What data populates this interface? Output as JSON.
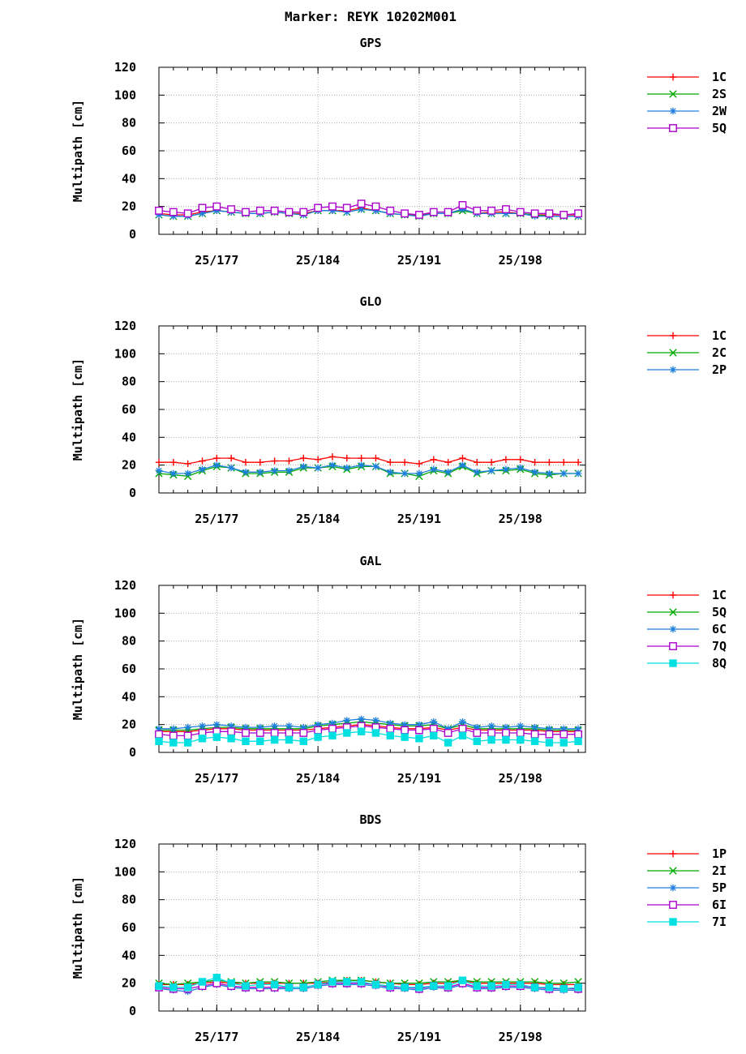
{
  "title": "Marker: REYK 10202M001",
  "chart_data": [
    {
      "type": "line",
      "title": "GPS",
      "ylabel": "Multipath [cm]",
      "ylim": [
        0,
        120
      ],
      "yticks": [
        0,
        20,
        40,
        60,
        80,
        100,
        120
      ],
      "xlim": [
        173,
        202.5
      ],
      "xticks": [
        {
          "value": 177,
          "label": "25/177"
        },
        {
          "value": 184,
          "label": "25/184"
        },
        {
          "value": 191,
          "label": "25/191"
        },
        {
          "value": 198,
          "label": "25/198"
        }
      ],
      "grid": true,
      "legend": "right",
      "x": [
        173,
        174,
        175,
        176,
        177,
        178,
        179,
        180,
        181,
        182,
        183,
        184,
        185,
        186,
        187,
        188,
        189,
        190,
        191,
        192,
        193,
        194,
        195,
        196,
        197,
        198,
        199,
        200,
        201,
        202
      ],
      "series": [
        {
          "name": "1C",
          "color": "#ff0000",
          "marker": "plus",
          "values": [
            15,
            14,
            14,
            16,
            17,
            16,
            15,
            15,
            16,
            15,
            15,
            17,
            17,
            17,
            19,
            17,
            15,
            14,
            14,
            15,
            15,
            18,
            15,
            16,
            16,
            15,
            14,
            14,
            14,
            14
          ]
        },
        {
          "name": "2S",
          "color": "#00aa00",
          "marker": "x",
          "values": [
            14,
            13,
            13,
            15,
            17,
            16,
            15,
            15,
            16,
            15,
            14,
            17,
            17,
            16,
            18,
            17,
            15,
            14,
            13,
            15,
            15,
            17,
            15,
            15,
            15,
            15,
            14,
            13,
            13,
            13
          ]
        },
        {
          "name": "2W",
          "color": "#1e7fe0",
          "marker": "star",
          "values": [
            14,
            13,
            13,
            15,
            17,
            16,
            15,
            15,
            16,
            15,
            14,
            17,
            17,
            16,
            18,
            17,
            15,
            14,
            13,
            15,
            15,
            18,
            15,
            15,
            15,
            15,
            13,
            13,
            13,
            13
          ]
        },
        {
          "name": "5Q",
          "color": "#aa00cc",
          "marker": "square",
          "values": [
            17,
            16,
            15,
            19,
            20,
            18,
            16,
            17,
            17,
            16,
            16,
            19,
            20,
            19,
            22,
            20,
            17,
            15,
            14,
            16,
            16,
            21,
            17,
            17,
            18,
            16,
            15,
            15,
            14,
            15
          ]
        }
      ]
    },
    {
      "type": "line",
      "title": "GLO",
      "ylabel": "Multipath [cm]",
      "ylim": [
        0,
        120
      ],
      "yticks": [
        0,
        20,
        40,
        60,
        80,
        100,
        120
      ],
      "xlim": [
        173,
        202.5
      ],
      "xticks": [
        {
          "value": 177,
          "label": "25/177"
        },
        {
          "value": 184,
          "label": "25/184"
        },
        {
          "value": 191,
          "label": "25/191"
        },
        {
          "value": 198,
          "label": "25/198"
        }
      ],
      "grid": true,
      "legend": "right",
      "x": [
        173,
        174,
        175,
        176,
        177,
        178,
        179,
        180,
        181,
        182,
        183,
        184,
        185,
        186,
        187,
        188,
        189,
        190,
        191,
        192,
        193,
        194,
        195,
        196,
        197,
        198,
        199,
        200,
        201,
        202
      ],
      "series": [
        {
          "name": "1C",
          "color": "#ff0000",
          "marker": "plus",
          "values": [
            22,
            22,
            21,
            23,
            25,
            25,
            22,
            22,
            23,
            23,
            25,
            24,
            26,
            25,
            25,
            25,
            22,
            22,
            21,
            24,
            22,
            25,
            22,
            22,
            24,
            24,
            22,
            22,
            22,
            22
          ]
        },
        {
          "name": "2C",
          "color": "#00aa00",
          "marker": "x",
          "values": [
            14,
            13,
            12,
            16,
            19,
            18,
            14,
            14,
            15,
            15,
            18,
            18,
            19,
            17,
            19,
            19,
            14,
            14,
            12,
            16,
            14,
            19,
            14,
            16,
            16,
            17,
            14,
            13,
            14,
            14
          ]
        },
        {
          "name": "2P",
          "color": "#1e7fe0",
          "marker": "star",
          "values": [
            16,
            14,
            14,
            17,
            20,
            18,
            15,
            15,
            16,
            16,
            19,
            18,
            20,
            18,
            20,
            19,
            15,
            14,
            14,
            17,
            15,
            20,
            15,
            16,
            17,
            18,
            15,
            14,
            14,
            14
          ]
        }
      ]
    },
    {
      "type": "line",
      "title": "GAL",
      "ylabel": "Multipath [cm]",
      "ylim": [
        0,
        120
      ],
      "yticks": [
        0,
        20,
        40,
        60,
        80,
        100,
        120
      ],
      "xlim": [
        173,
        202.5
      ],
      "xticks": [
        {
          "value": 177,
          "label": "25/177"
        },
        {
          "value": 184,
          "label": "25/184"
        },
        {
          "value": 191,
          "label": "25/191"
        },
        {
          "value": 198,
          "label": "25/198"
        }
      ],
      "grid": true,
      "legend": "right",
      "x": [
        173,
        174,
        175,
        176,
        177,
        178,
        179,
        180,
        181,
        182,
        183,
        184,
        185,
        186,
        187,
        188,
        189,
        190,
        191,
        192,
        193,
        194,
        195,
        196,
        197,
        198,
        199,
        200,
        201,
        202
      ],
      "series": [
        {
          "name": "1C",
          "color": "#ff0000",
          "marker": "plus",
          "values": [
            15,
            15,
            15,
            16,
            17,
            17,
            16,
            16,
            16,
            16,
            16,
            17,
            18,
            19,
            20,
            19,
            18,
            17,
            17,
            18,
            16,
            18,
            16,
            16,
            16,
            16,
            16,
            15,
            15,
            15
          ]
        },
        {
          "name": "5Q",
          "color": "#00aa00",
          "marker": "x",
          "values": [
            16,
            16,
            16,
            17,
            18,
            18,
            17,
            17,
            17,
            17,
            17,
            19,
            20,
            21,
            22,
            21,
            20,
            19,
            19,
            20,
            17,
            20,
            17,
            17,
            17,
            17,
            17,
            16,
            16,
            16
          ]
        },
        {
          "name": "6C",
          "color": "#1e7fe0",
          "marker": "star",
          "values": [
            17,
            17,
            18,
            19,
            20,
            19,
            18,
            18,
            19,
            19,
            18,
            20,
            21,
            23,
            24,
            23,
            21,
            20,
            20,
            22,
            17,
            22,
            18,
            19,
            18,
            19,
            18,
            17,
            17,
            17
          ]
        },
        {
          "name": "7Q",
          "color": "#aa00cc",
          "marker": "square",
          "values": [
            13,
            12,
            12,
            14,
            15,
            15,
            14,
            14,
            14,
            14,
            14,
            16,
            17,
            18,
            19,
            18,
            17,
            16,
            16,
            17,
            14,
            17,
            14,
            14,
            14,
            14,
            13,
            13,
            13,
            13
          ]
        },
        {
          "name": "8Q",
          "color": "#00e0e0",
          "marker": "filledsquare",
          "values": [
            8,
            7,
            7,
            10,
            11,
            10,
            8,
            8,
            9,
            9,
            8,
            11,
            12,
            14,
            15,
            14,
            12,
            11,
            10,
            12,
            7,
            12,
            8,
            9,
            9,
            9,
            8,
            7,
            7,
            8
          ]
        }
      ]
    },
    {
      "type": "line",
      "title": "BDS",
      "ylabel": "Multipath [cm]",
      "ylim": [
        0,
        120
      ],
      "yticks": [
        0,
        20,
        40,
        60,
        80,
        100,
        120
      ],
      "xlim": [
        173,
        202.5
      ],
      "xticks": [
        {
          "value": 177,
          "label": "25/177"
        },
        {
          "value": 184,
          "label": "25/184"
        },
        {
          "value": 191,
          "label": "25/191"
        },
        {
          "value": 198,
          "label": "25/198"
        }
      ],
      "grid": true,
      "legend": "right",
      "x": [
        173,
        174,
        175,
        176,
        177,
        178,
        179,
        180,
        181,
        182,
        183,
        184,
        185,
        186,
        187,
        188,
        189,
        190,
        191,
        192,
        193,
        194,
        195,
        196,
        197,
        198,
        199,
        200,
        201,
        202
      ],
      "series": [
        {
          "name": "1P",
          "color": "#ff0000",
          "marker": "plus",
          "values": [
            19,
            19,
            19,
            20,
            21,
            20,
            20,
            20,
            20,
            20,
            20,
            20,
            21,
            22,
            22,
            21,
            20,
            19,
            19,
            20,
            20,
            22,
            20,
            20,
            20,
            20,
            20,
            19,
            19,
            19
          ]
        },
        {
          "name": "2I",
          "color": "#00aa00",
          "marker": "x",
          "values": [
            20,
            19,
            20,
            21,
            22,
            21,
            20,
            21,
            21,
            20,
            20,
            21,
            22,
            22,
            22,
            21,
            20,
            20,
            20,
            21,
            21,
            22,
            21,
            21,
            21,
            21,
            21,
            20,
            20,
            21
          ]
        },
        {
          "name": "5P",
          "color": "#1e7fe0",
          "marker": "star",
          "values": [
            16,
            15,
            14,
            17,
            19,
            17,
            16,
            16,
            16,
            16,
            16,
            18,
            19,
            19,
            19,
            18,
            16,
            16,
            15,
            17,
            16,
            19,
            16,
            16,
            17,
            17,
            16,
            15,
            15,
            15
          ]
        },
        {
          "name": "6I",
          "color": "#aa00cc",
          "marker": "square",
          "values": [
            17,
            16,
            16,
            18,
            20,
            18,
            17,
            17,
            17,
            17,
            17,
            19,
            20,
            20,
            20,
            19,
            17,
            17,
            16,
            18,
            17,
            20,
            17,
            17,
            18,
            18,
            17,
            16,
            16,
            16
          ]
        },
        {
          "name": "7I",
          "color": "#00e0e0",
          "marker": "filledsquare",
          "values": [
            18,
            17,
            17,
            21,
            24,
            20,
            18,
            19,
            19,
            17,
            17,
            19,
            21,
            21,
            21,
            19,
            18,
            17,
            17,
            18,
            18,
            22,
            18,
            18,
            19,
            19,
            17,
            17,
            16,
            17
          ]
        }
      ]
    }
  ]
}
